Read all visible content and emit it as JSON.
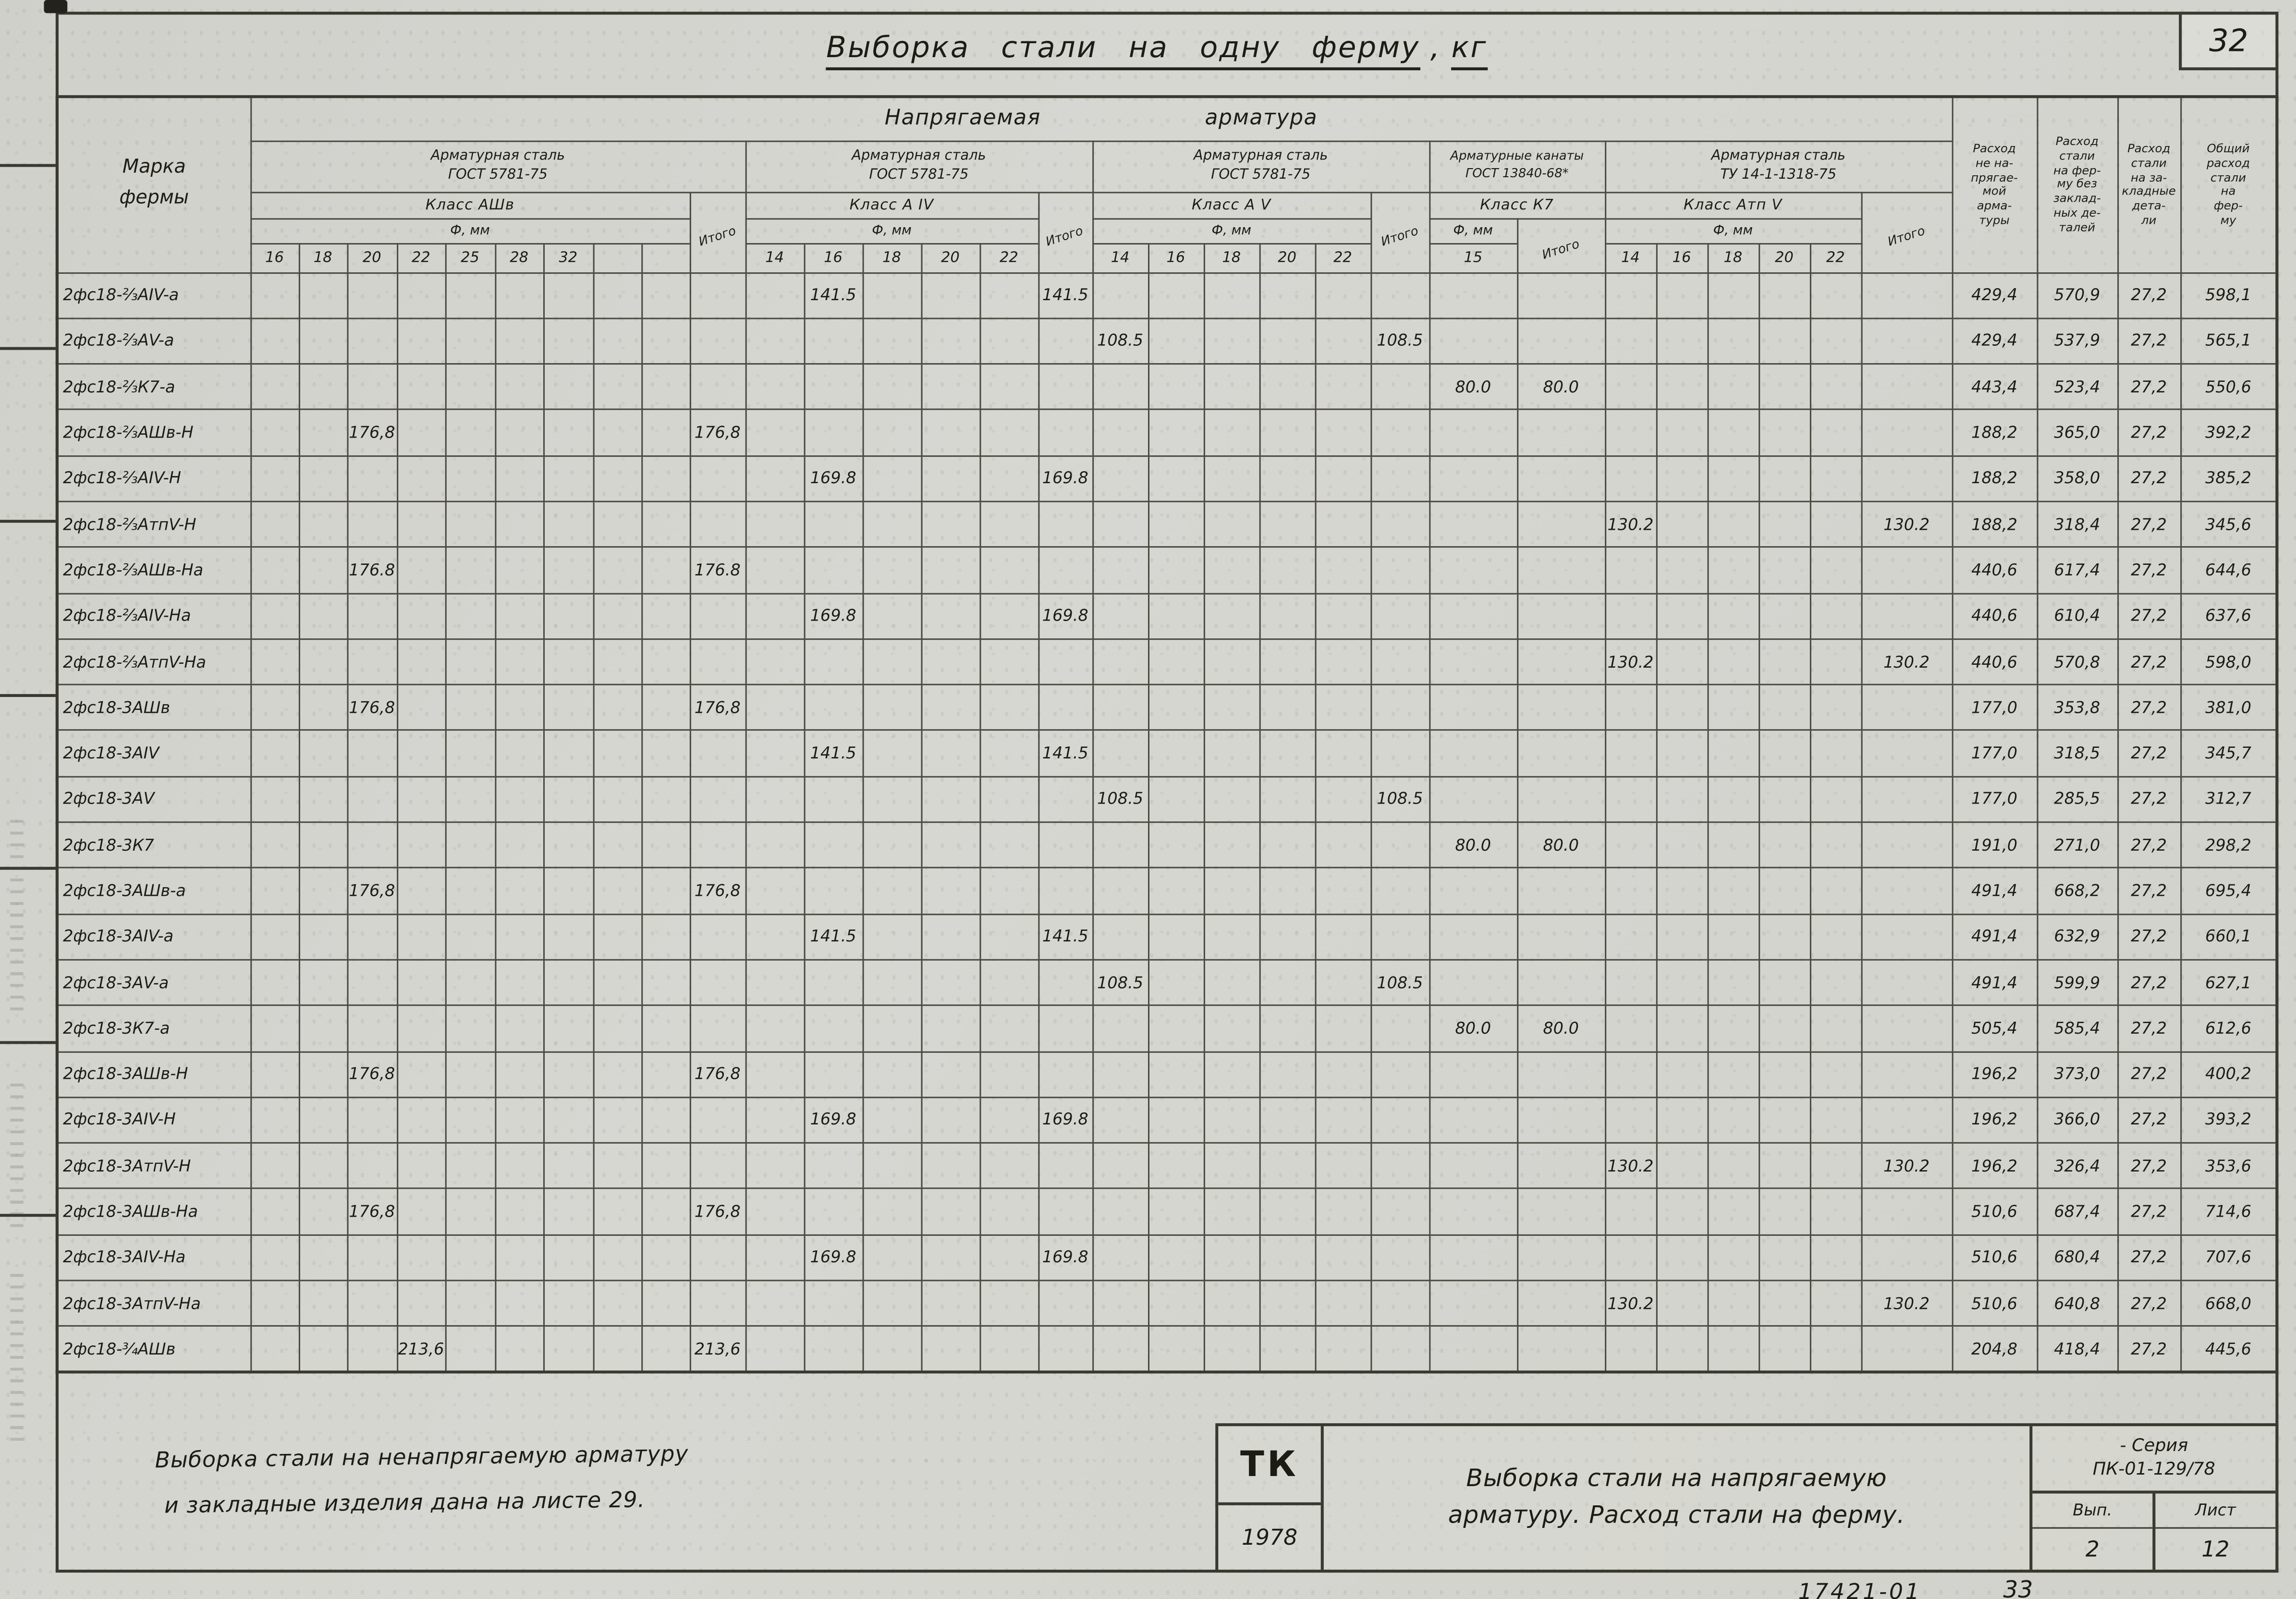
{
  "page": {
    "sheet_number": "32",
    "title_main": "Выборка стали на одну ферму",
    "title_sep": ",",
    "title_unit": "кг"
  },
  "table": {
    "corner_header": "Марка\nфермы",
    "top_header_word1": "Напрягаемая",
    "top_header_word2": "арматура",
    "phi_label": "Ф, мм",
    "itogo_label": "Итого",
    "groups": [
      {
        "key": "g1",
        "title1": "Арматурная сталь",
        "title2": "ГОСТ 5781-75",
        "klass": "Класс АШв",
        "diams": [
          "16",
          "18",
          "20",
          "22",
          "25",
          "28",
          "32",
          "",
          ""
        ]
      },
      {
        "key": "g2",
        "title1": "Арматурная сталь",
        "title2": "ГОСТ 5781-75",
        "klass": "Класс А IV",
        "diams": [
          "14",
          "16",
          "18",
          "20",
          "22"
        ]
      },
      {
        "key": "g3",
        "title1": "Арматурная сталь",
        "title2": "ГОСТ 5781-75",
        "klass": "Класс А V",
        "diams": [
          "14",
          "16",
          "18",
          "20",
          "22"
        ]
      },
      {
        "key": "g4",
        "title1": "Арматурные канаты",
        "title2": "ГОСТ 13840-68*",
        "klass": "Класс К7",
        "diams": [
          "15"
        ]
      },
      {
        "key": "g5",
        "title1": "Арматурная сталь",
        "title2": "ТУ 14-1-1318-75",
        "klass": "Класс Атп V",
        "diams": [
          "14",
          "16",
          "18",
          "20",
          "22"
        ]
      }
    ],
    "right_headers": [
      "Расход\nне на-\nпрягае-\nмой\nарма-\nтуры",
      "Расход\nстали\nна фер-\nму без\nзаклад-\nных де-\nталей",
      "Расход\nстали\nна за-\nкладные\nдета-\nли",
      "Общий\nрасход\nстали\nна\nфер-\nму"
    ],
    "rows": [
      {
        "mark": "2фс18-⅔АIV-а",
        "cells": {
          "g2_16": "141.5",
          "g2_it": "141.5"
        },
        "right": [
          "429,4",
          "570,9",
          "27,2",
          "598,1"
        ]
      },
      {
        "mark": "2фс18-⅔АV-а",
        "cells": {
          "g3_14": "108.5",
          "g3_it": "108.5"
        },
        "right": [
          "429,4",
          "537,9",
          "27,2",
          "565,1"
        ]
      },
      {
        "mark": "2фс18-⅔К7-а",
        "cells": {
          "g4_15": "80.0",
          "g4_it": "80.0"
        },
        "right": [
          "443,4",
          "523,4",
          "27,2",
          "550,6"
        ]
      },
      {
        "mark": "2фс18-⅔АШв-Н",
        "cells": {
          "g1_20": "176,8",
          "g1_it": "176,8"
        },
        "right": [
          "188,2",
          "365,0",
          "27,2",
          "392,2"
        ]
      },
      {
        "mark": "2фс18-⅔АIV-Н",
        "cells": {
          "g2_16": "169.8",
          "g2_it": "169.8"
        },
        "right": [
          "188,2",
          "358,0",
          "27,2",
          "385,2"
        ]
      },
      {
        "mark": "2фс18-⅔АтпV-Н",
        "cells": {
          "g5_14": "130.2",
          "g5_it": "130.2"
        },
        "right": [
          "188,2",
          "318,4",
          "27,2",
          "345,6"
        ]
      },
      {
        "mark": "2фс18-⅔АШв-На",
        "cells": {
          "g1_20": "176.8",
          "g1_it": "176.8"
        },
        "right": [
          "440,6",
          "617,4",
          "27,2",
          "644,6"
        ]
      },
      {
        "mark": "2фс18-⅔АIV-На",
        "cells": {
          "g2_16": "169.8",
          "g2_it": "169.8"
        },
        "right": [
          "440,6",
          "610,4",
          "27,2",
          "637,6"
        ]
      },
      {
        "mark": "2фс18-⅔АтпV-На",
        "cells": {
          "g5_14": "130.2",
          "g5_it": "130.2"
        },
        "right": [
          "440,6",
          "570,8",
          "27,2",
          "598,0"
        ]
      },
      {
        "mark": "2фс18-3АШв",
        "cells": {
          "g1_20": "176,8",
          "g1_it": "176,8"
        },
        "right": [
          "177,0",
          "353,8",
          "27,2",
          "381,0"
        ]
      },
      {
        "mark": "2фс18-3АIV",
        "cells": {
          "g2_16": "141.5",
          "g2_it": "141.5"
        },
        "right": [
          "177,0",
          "318,5",
          "27,2",
          "345,7"
        ]
      },
      {
        "mark": "2фс18-3АV",
        "cells": {
          "g3_14": "108.5",
          "g3_it": "108.5"
        },
        "right": [
          "177,0",
          "285,5",
          "27,2",
          "312,7"
        ]
      },
      {
        "mark": "2фс18-3К7",
        "cells": {
          "g4_15": "80.0",
          "g4_it": "80.0"
        },
        "right": [
          "191,0",
          "271,0",
          "27,2",
          "298,2"
        ]
      },
      {
        "mark": "2фс18-3АШв-а",
        "cells": {
          "g1_20": "176,8",
          "g1_it": "176,8"
        },
        "right": [
          "491,4",
          "668,2",
          "27,2",
          "695,4"
        ]
      },
      {
        "mark": "2фс18-3АIV-а",
        "cells": {
          "g2_16": "141.5",
          "g2_it": "141.5"
        },
        "right": [
          "491,4",
          "632,9",
          "27,2",
          "660,1"
        ]
      },
      {
        "mark": "2фс18-3АV-а",
        "cells": {
          "g3_14": "108.5",
          "g3_it": "108.5"
        },
        "right": [
          "491,4",
          "599,9",
          "27,2",
          "627,1"
        ]
      },
      {
        "mark": "2фс18-3К7-а",
        "cells": {
          "g4_15": "80.0",
          "g4_it": "80.0"
        },
        "right": [
          "505,4",
          "585,4",
          "27,2",
          "612,6"
        ]
      },
      {
        "mark": "2фс18-3АШв-Н",
        "cells": {
          "g1_20": "176,8",
          "g1_it": "176,8"
        },
        "right": [
          "196,2",
          "373,0",
          "27,2",
          "400,2"
        ]
      },
      {
        "mark": "2фс18-3АIV-Н",
        "cells": {
          "g2_16": "169.8",
          "g2_it": "169.8"
        },
        "right": [
          "196,2",
          "366,0",
          "27,2",
          "393,2"
        ]
      },
      {
        "mark": "2фс18-3АтпV-Н",
        "cells": {
          "g5_14": "130.2",
          "g5_it": "130.2"
        },
        "right": [
          "196,2",
          "326,4",
          "27,2",
          "353,6"
        ]
      },
      {
        "mark": "2фс18-3АШв-На",
        "cells": {
          "g1_20": "176,8",
          "g1_it": "176,8"
        },
        "right": [
          "510,6",
          "687,4",
          "27,2",
          "714,6"
        ]
      },
      {
        "mark": "2фс18-3АIV-На",
        "cells": {
          "g2_16": "169.8",
          "g2_it": "169.8"
        },
        "right": [
          "510,6",
          "680,4",
          "27,2",
          "707,6"
        ]
      },
      {
        "mark": "2фс18-3АтпV-На",
        "cells": {
          "g5_14": "130.2",
          "g5_it": "130.2"
        },
        "right": [
          "510,6",
          "640,8",
          "27,2",
          "668,0"
        ]
      },
      {
        "mark": "2фс18-¾АШв",
        "cells": {
          "g1_22": "213,6",
          "g1_it": "213,6"
        },
        "right": [
          "204,8",
          "418,4",
          "27,2",
          "445,6"
        ]
      }
    ]
  },
  "footer": {
    "note_line1": "Выборка стали на ненапрягаемую арматуру",
    "note_line2": "и закладные изделия дана на листе 29.",
    "stamp_logo": "ТК",
    "stamp_year": "1978",
    "stamp_title1": "Выборка стали на напрягаемую",
    "stamp_title2": "арматуру. Расход стали на ферму.",
    "series_label": "- Серия",
    "series_value": "ПК-01-129/78",
    "vyp_label": "Вып.",
    "vyp_value": "2",
    "list_label": "Лист",
    "list_value": "12",
    "doc_code": "17421-01",
    "hand_number": "33"
  }
}
